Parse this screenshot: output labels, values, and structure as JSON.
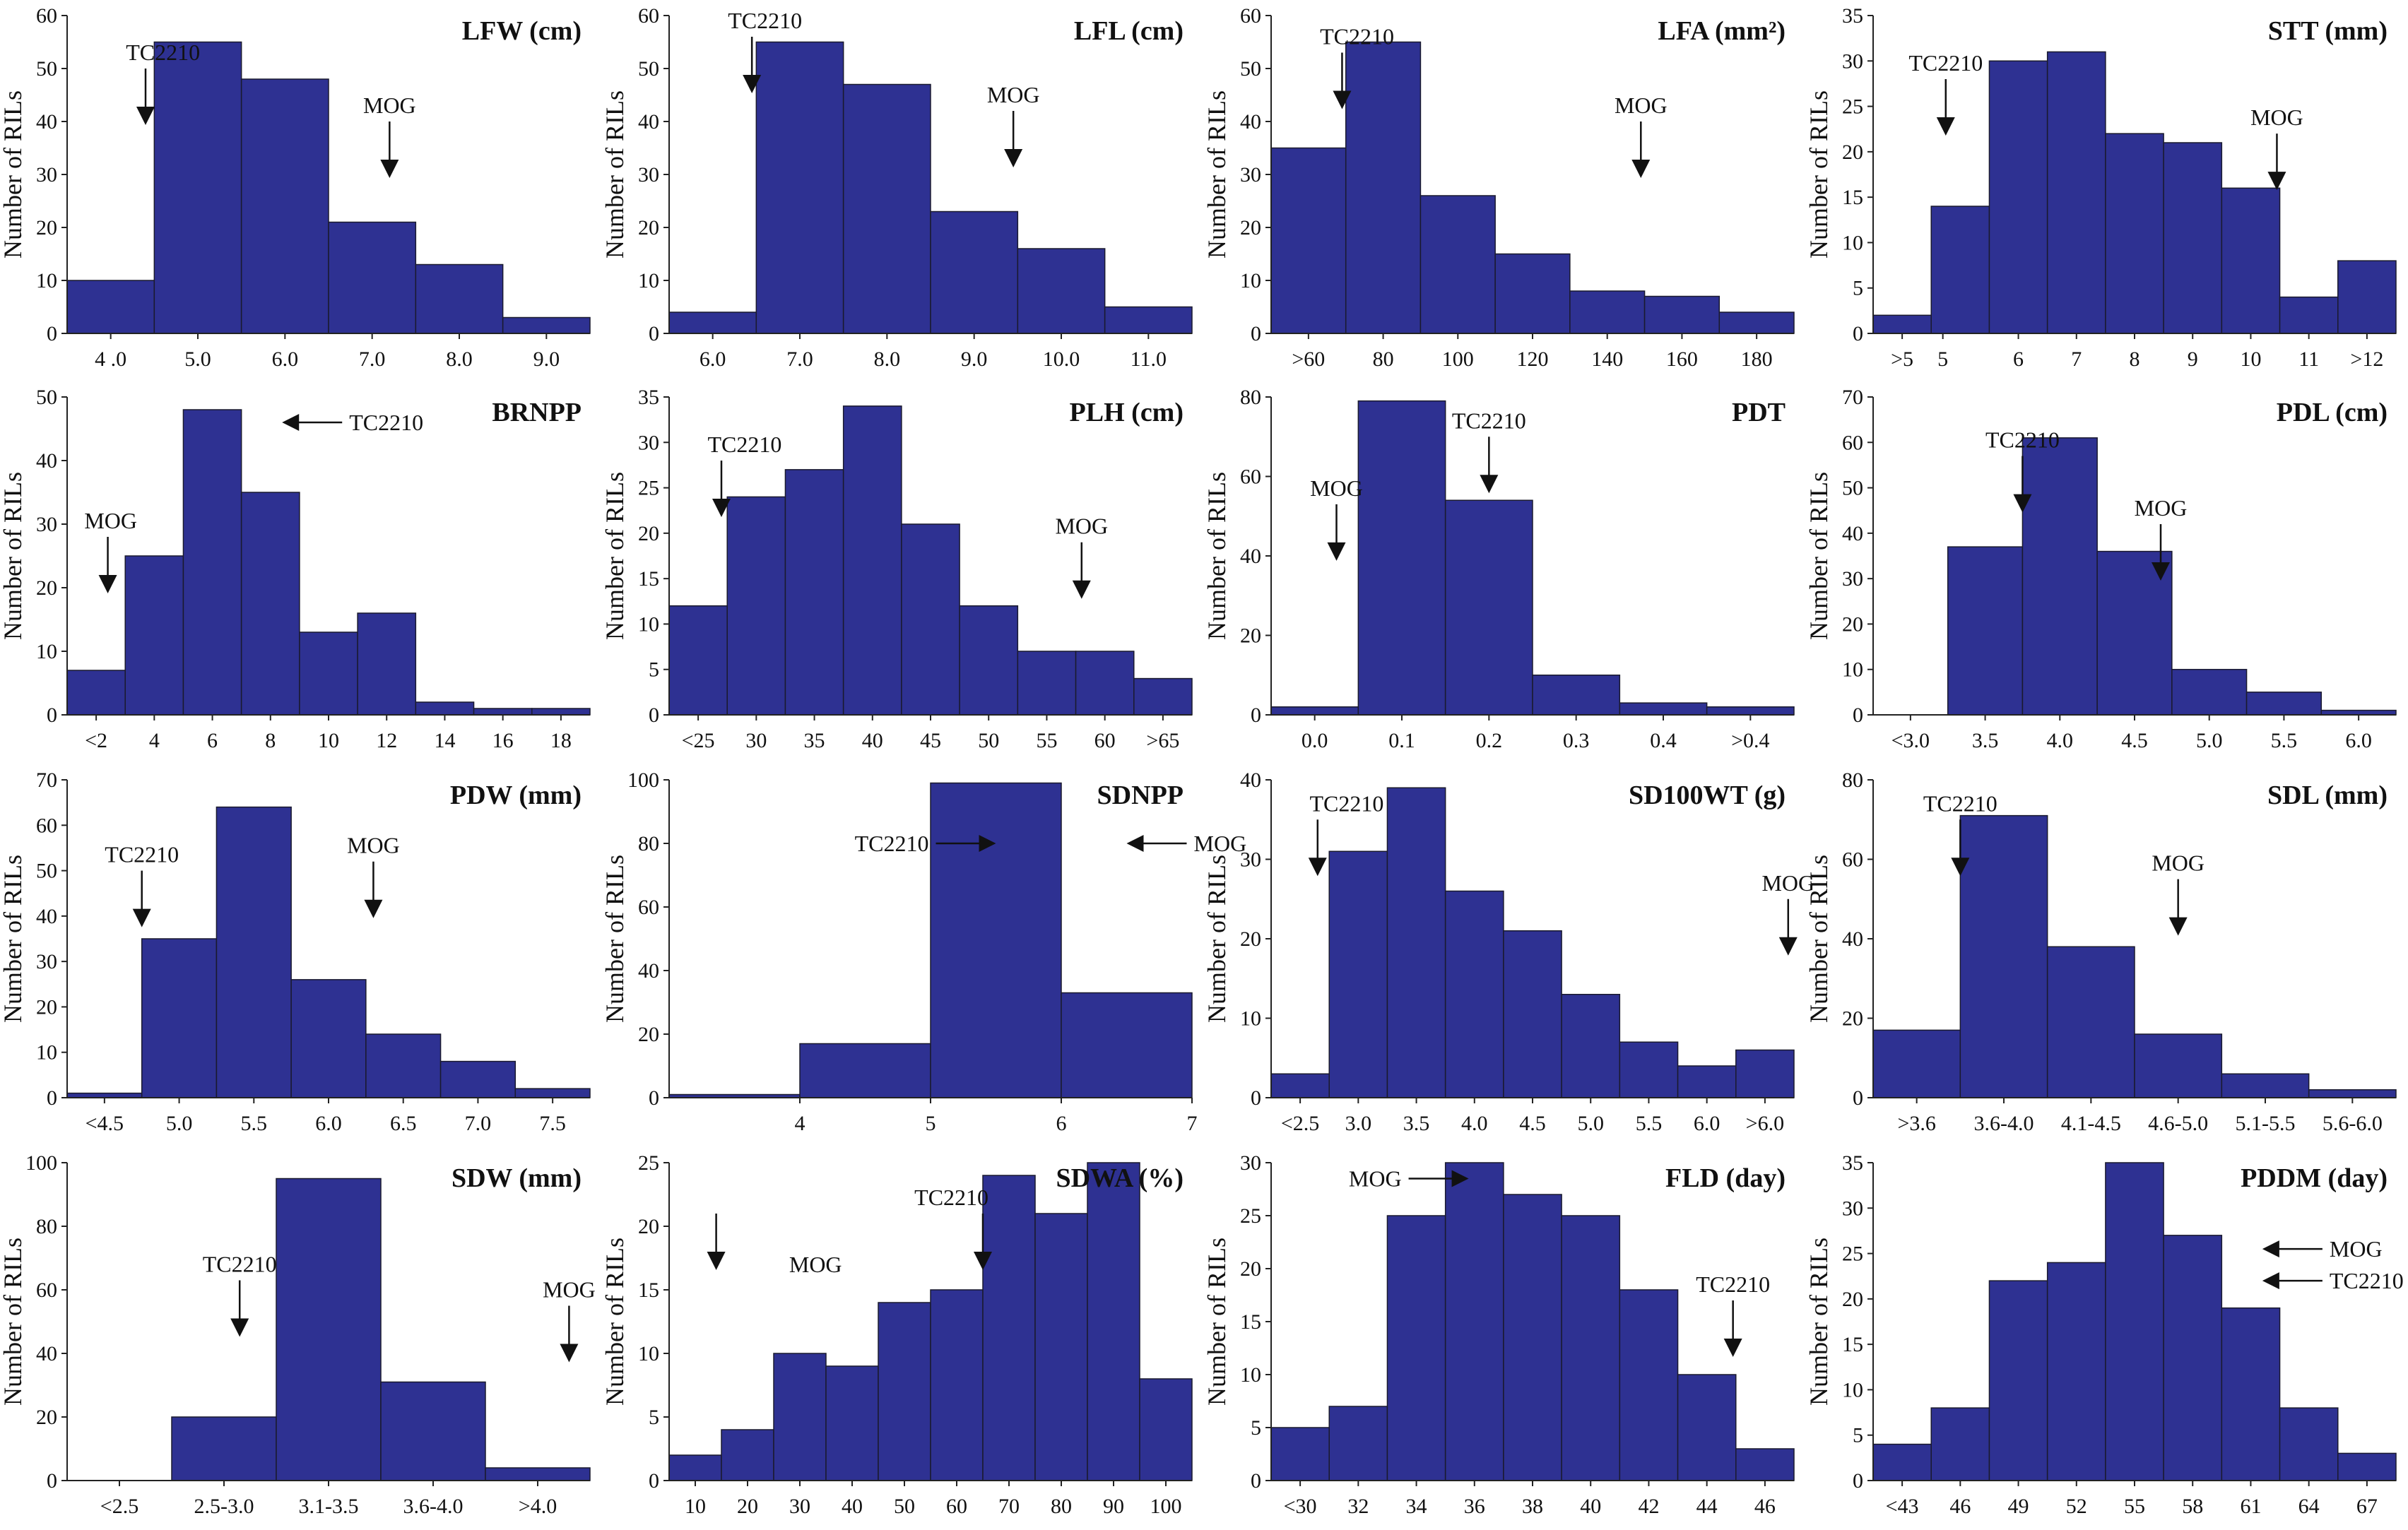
{
  "figure": {
    "ylabel": "Number of RILs"
  },
  "chart_data": [
    {
      "type": "bar",
      "title": "LFW (cm)",
      "ylim": [
        0,
        60
      ],
      "yticks": [
        0,
        10,
        20,
        30,
        40,
        50,
        60
      ],
      "values": [
        10,
        55,
        48,
        21,
        13,
        3
      ],
      "xticks": [
        {
          "label": "4 .0",
          "p": 0.0
        },
        {
          "label": "5.0",
          "p": 1.0
        },
        {
          "label": "6.0",
          "p": 2.0
        },
        {
          "label": "7.0",
          "p": 3.0
        },
        {
          "label": "8.0",
          "p": 4.0
        },
        {
          "label": "9.0",
          "p": 5.0
        }
      ],
      "annotations": [
        {
          "text": "TC2210",
          "type": "down",
          "p": 0.4,
          "y": 50,
          "tdx": 0.2
        },
        {
          "text": "MOG",
          "type": "down",
          "p": 3.2,
          "y": 40
        }
      ]
    },
    {
      "type": "bar",
      "title": "LFL (cm)",
      "ylim": [
        0,
        60
      ],
      "yticks": [
        0,
        10,
        20,
        30,
        40,
        50,
        60
      ],
      "values": [
        4,
        55,
        47,
        23,
        16,
        5
      ],
      "xticks": [
        {
          "label": "6.0",
          "p": 0.0
        },
        {
          "label": "7.0",
          "p": 1.0
        },
        {
          "label": "8.0",
          "p": 2.0
        },
        {
          "label": "9.0",
          "p": 3.0
        },
        {
          "label": "10.0",
          "p": 4.0
        },
        {
          "label": "11.0",
          "p": 5.0
        }
      ],
      "annotations": [
        {
          "text": "TC2210",
          "type": "down",
          "p": 0.45,
          "y": 56,
          "tdx": 0.15
        },
        {
          "text": "MOG",
          "type": "down",
          "p": 3.45,
          "y": 42
        }
      ]
    },
    {
      "type": "bar",
      "title": "LFA (mm²)",
      "ylim": [
        0,
        60
      ],
      "yticks": [
        0,
        10,
        20,
        30,
        40,
        50,
        60
      ],
      "values": [
        35,
        55,
        26,
        15,
        8,
        7,
        4
      ],
      "xticks": [
        {
          "label": ">60",
          "p": 0.0
        },
        {
          "label": "80",
          "p": 1.0
        },
        {
          "label": "100",
          "p": 2.0
        },
        {
          "label": "120",
          "p": 3.0
        },
        {
          "label": "140",
          "p": 4.0
        },
        {
          "label": "160",
          "p": 5.0
        },
        {
          "label": "180",
          "p": 6.0
        }
      ],
      "annotations": [
        {
          "text": "TC2210",
          "type": "down",
          "p": 0.45,
          "y": 53,
          "tdx": 0.2
        },
        {
          "text": "MOG",
          "type": "down",
          "p": 4.45,
          "y": 40
        }
      ]
    },
    {
      "type": "bar",
      "title": "STT (mm)",
      "ylim": [
        0,
        35
      ],
      "yticks": [
        0,
        5,
        10,
        15,
        20,
        25,
        30,
        35
      ],
      "values": [
        2,
        14,
        30,
        31,
        22,
        21,
        16,
        4,
        8
      ],
      "xticks": [
        {
          "label": ">5",
          "p": 0.0
        },
        {
          "label": "5",
          "p": 0.7
        },
        {
          "label": "6",
          "p": 2.0
        },
        {
          "label": "7",
          "p": 3.0
        },
        {
          "label": "8",
          "p": 4.0
        },
        {
          "label": "9",
          "p": 5.0
        },
        {
          "label": "10",
          "p": 6.0
        },
        {
          "label": "11",
          "p": 7.0
        },
        {
          "label": ">12",
          "p": 8.0
        }
      ],
      "annotations": [
        {
          "text": "TC2210",
          "type": "down",
          "p": 0.75,
          "y": 28,
          "tdx": 0.0
        },
        {
          "text": "MOG",
          "type": "down",
          "p": 6.45,
          "y": 22
        }
      ]
    },
    {
      "type": "bar",
      "title": "BRNPP",
      "ylim": [
        0,
        50
      ],
      "yticks": [
        0,
        10,
        20,
        30,
        40,
        50
      ],
      "values": [
        7,
        25,
        48,
        35,
        13,
        16,
        2,
        1,
        1
      ],
      "xticks": [
        {
          "label": "<2",
          "p": 0.0
        },
        {
          "label": "4",
          "p": 1.0
        },
        {
          "label": "6",
          "p": 2.0
        },
        {
          "label": "8",
          "p": 3.0
        },
        {
          "label": "10",
          "p": 4.0
        },
        {
          "label": "12",
          "p": 5.0
        },
        {
          "label": "14",
          "p": 6.0
        },
        {
          "label": "16",
          "p": 7.0
        },
        {
          "label": "18",
          "p": 8.0
        }
      ],
      "annotations": [
        {
          "text": "TC2210",
          "type": "left",
          "p": 3.2,
          "y": 46
        },
        {
          "text": "MOG",
          "type": "down",
          "p": 0.2,
          "y": 28,
          "tdx": 0.05
        }
      ]
    },
    {
      "type": "bar",
      "title": "PLH (cm)",
      "ylim": [
        0,
        35
      ],
      "yticks": [
        0,
        5,
        10,
        15,
        20,
        25,
        30,
        35
      ],
      "values": [
        12,
        24,
        27,
        34,
        21,
        12,
        7,
        7,
        4
      ],
      "xticks": [
        {
          "label": "<25",
          "p": 0.0
        },
        {
          "label": "30",
          "p": 1.0
        },
        {
          "label": "35",
          "p": 2.0
        },
        {
          "label": "40",
          "p": 3.0
        },
        {
          "label": "45",
          "p": 4.0
        },
        {
          "label": "50",
          "p": 5.0
        },
        {
          "label": "55",
          "p": 6.0
        },
        {
          "label": "60",
          "p": 7.0
        },
        {
          "label": ">65",
          "p": 8.0
        }
      ],
      "annotations": [
        {
          "text": "TC2210",
          "type": "down",
          "p": 0.4,
          "y": 28,
          "tdx": 0.4
        },
        {
          "text": "MOG",
          "type": "down",
          "p": 6.6,
          "y": 19
        }
      ]
    },
    {
      "type": "bar",
      "title": "PDT",
      "ylim": [
        0,
        80
      ],
      "yticks": [
        0,
        20,
        40,
        60,
        80
      ],
      "values": [
        2,
        79,
        54,
        10,
        3,
        2
      ],
      "xticks": [
        {
          "label": "0.0",
          "p": 0.0
        },
        {
          "label": "0.1",
          "p": 1.0
        },
        {
          "label": "0.2",
          "p": 2.0
        },
        {
          "label": "0.3",
          "p": 3.0
        },
        {
          "label": "0.4",
          "p": 4.0
        },
        {
          "label": ">0.4",
          "p": 5.0
        }
      ],
      "annotations": [
        {
          "text": "TC2210",
          "type": "down",
          "p": 2.0,
          "y": 70,
          "tdx": 0.0
        },
        {
          "text": "MOG",
          "type": "down",
          "p": 0.25,
          "y": 53,
          "tdx": 0.0
        }
      ]
    },
    {
      "type": "bar",
      "title": "PDL (cm)",
      "ylim": [
        0,
        70
      ],
      "yticks": [
        0,
        10,
        20,
        30,
        40,
        50,
        60,
        70
      ],
      "values": [
        0,
        37,
        61,
        36,
        10,
        5,
        1
      ],
      "xticks": [
        {
          "label": "<3.0",
          "p": 0.0
        },
        {
          "label": "3.5",
          "p": 1.0
        },
        {
          "label": "4.0",
          "p": 2.0
        },
        {
          "label": "4.5",
          "p": 3.0
        },
        {
          "label": "5.0",
          "p": 4.0
        },
        {
          "label": "5.5",
          "p": 5.0
        },
        {
          "label": "6.0",
          "p": 6.0
        }
      ],
      "annotations": [
        {
          "text": "TC2210",
          "type": "down",
          "p": 1.5,
          "y": 57,
          "tdx": 0.0
        },
        {
          "text": "MOG",
          "type": "down",
          "p": 3.35,
          "y": 42,
          "tdx": 0.0
        }
      ]
    },
    {
      "type": "bar",
      "title": "PDW (mm)",
      "ylim": [
        0,
        70
      ],
      "yticks": [
        0,
        10,
        20,
        30,
        40,
        50,
        60,
        70
      ],
      "values": [
        1,
        35,
        64,
        26,
        14,
        8,
        2
      ],
      "xticks": [
        {
          "label": "<4.5",
          "p": 0.0
        },
        {
          "label": "5.0",
          "p": 1.0
        },
        {
          "label": "5.5",
          "p": 2.0
        },
        {
          "label": "6.0",
          "p": 3.0
        },
        {
          "label": "6.5",
          "p": 4.0
        },
        {
          "label": "7.0",
          "p": 5.0
        },
        {
          "label": "7.5",
          "p": 6.0
        }
      ],
      "annotations": [
        {
          "text": "TC2210",
          "type": "down",
          "p": 0.5,
          "y": 50,
          "tdx": 0.0
        },
        {
          "text": "MOG",
          "type": "down",
          "p": 3.6,
          "y": 52,
          "tdx": 0.0
        }
      ]
    },
    {
      "type": "bar",
      "title": "SDNPP",
      "ylim": [
        0,
        100
      ],
      "yticks": [
        0,
        20,
        40,
        60,
        80,
        100
      ],
      "values": [
        1,
        17,
        99,
        33
      ],
      "xticks": [
        {
          "label": "4",
          "p": 0.5
        },
        {
          "label": "5",
          "p": 1.5
        },
        {
          "label": "6",
          "p": 2.5
        },
        {
          "label": "7",
          "p": 3.5
        }
      ],
      "annotations": [
        {
          "text": "TC2210",
          "type": "right",
          "p": 2.0,
          "y": 80
        },
        {
          "text": "MOG",
          "type": "left",
          "p": 3.0,
          "y": 80
        }
      ]
    },
    {
      "type": "bar",
      "title": "SD100WT (g)",
      "ylim": [
        0,
        40
      ],
      "yticks": [
        0,
        10,
        20,
        30,
        40
      ],
      "values": [
        3,
        31,
        39,
        26,
        21,
        13,
        7,
        4,
        6
      ],
      "xticks": [
        {
          "label": "<2.5",
          "p": 0.0
        },
        {
          "label": "3.0",
          "p": 1.0
        },
        {
          "label": "3.5",
          "p": 2.0
        },
        {
          "label": "4.0",
          "p": 3.0
        },
        {
          "label": "4.5",
          "p": 4.0
        },
        {
          "label": "5.0",
          "p": 5.0
        },
        {
          "label": "5.5",
          "p": 6.0
        },
        {
          "label": "6.0",
          "p": 7.0
        },
        {
          "label": ">6.0",
          "p": 8.0
        }
      ],
      "annotations": [
        {
          "text": "TC2210",
          "type": "down",
          "p": 0.3,
          "y": 35,
          "tdx": 0.5
        },
        {
          "text": "MOG",
          "type": "down",
          "p": 8.4,
          "y": 25,
          "tdx": 0.0
        }
      ]
    },
    {
      "type": "bar",
      "title": "SDL (mm)",
      "ylim": [
        0,
        80
      ],
      "yticks": [
        0,
        20,
        40,
        60,
        80
      ],
      "values": [
        17,
        71,
        38,
        16,
        6,
        2
      ],
      "xticks": [
        {
          "label": ">3.6",
          "p": 0.0
        },
        {
          "label": "3.6-4.0",
          "p": 1.0
        },
        {
          "label": "4.1-4.5",
          "p": 2.0
        },
        {
          "label": "4.6-5.0",
          "p": 3.0
        },
        {
          "label": "5.1-5.5",
          "p": 4.0
        },
        {
          "label": "5.6-6.0",
          "p": 5.0
        }
      ],
      "annotations": [
        {
          "text": "TC2210",
          "type": "down",
          "p": 0.5,
          "y": 70,
          "tdx": 0.0
        },
        {
          "text": "MOG",
          "type": "down",
          "p": 3.0,
          "y": 55,
          "tdx": 0.0
        }
      ]
    },
    {
      "type": "bar",
      "title": "SDW (mm)",
      "ylim": [
        0,
        100
      ],
      "yticks": [
        0,
        20,
        40,
        60,
        80,
        100
      ],
      "values": [
        0,
        20,
        95,
        31,
        4
      ],
      "xticks": [
        {
          "label": "<2.5",
          "p": 0.0
        },
        {
          "label": "2.5-3.0",
          "p": 1.0
        },
        {
          "label": "3.1-3.5",
          "p": 2.0
        },
        {
          "label": "3.6-4.0",
          "p": 3.0
        },
        {
          "label": ">4.0",
          "p": 4.0
        }
      ],
      "annotations": [
        {
          "text": "TC2210",
          "type": "down",
          "p": 1.15,
          "y": 63,
          "tdx": 0.0
        },
        {
          "text": "MOG",
          "type": "down",
          "p": 4.3,
          "y": 55,
          "tdx": 0.0
        }
      ]
    },
    {
      "type": "bar",
      "title": "SDWA (%)",
      "ylim": [
        0,
        25
      ],
      "yticks": [
        0,
        5,
        10,
        15,
        20,
        25
      ],
      "values": [
        2,
        4,
        10,
        9,
        14,
        15,
        24,
        21,
        25,
        8
      ],
      "xticks": [
        {
          "label": "10",
          "p": 0.0
        },
        {
          "label": "20",
          "p": 1.0
        },
        {
          "label": "30",
          "p": 2.0
        },
        {
          "label": "40",
          "p": 3.0
        },
        {
          "label": "50",
          "p": 4.0
        },
        {
          "label": "60",
          "p": 5.0
        },
        {
          "label": "70",
          "p": 6.0
        },
        {
          "label": "80",
          "p": 7.0
        },
        {
          "label": "90",
          "p": 8.0
        },
        {
          "label": "100",
          "p": 9.0
        }
      ],
      "annotations": [
        {
          "text": "",
          "type": "down",
          "p": 0.4,
          "y": 21,
          "tdx": 0.0
        },
        {
          "text": "MOG",
          "type": "text",
          "p": 2.3,
          "y": 17
        },
        {
          "text": "TC2210",
          "type": "down",
          "p": 5.5,
          "y": 21,
          "tdx": -0.6
        }
      ]
    },
    {
      "type": "bar",
      "title": "FLD (day)",
      "ylim": [
        0,
        30
      ],
      "yticks": [
        0,
        5,
        10,
        15,
        20,
        25,
        30
      ],
      "values": [
        5,
        7,
        25,
        30,
        27,
        25,
        18,
        10,
        3
      ],
      "xticks": [
        {
          "label": "<30",
          "p": 0.0
        },
        {
          "label": "32",
          "p": 1.0
        },
        {
          "label": "34",
          "p": 2.0
        },
        {
          "label": "36",
          "p": 3.0
        },
        {
          "label": "38",
          "p": 4.0
        },
        {
          "label": "40",
          "p": 5.0
        },
        {
          "label": "42",
          "p": 6.0
        },
        {
          "label": "44",
          "p": 7.0
        },
        {
          "label": "46",
          "p": 8.0
        }
      ],
      "annotations": [
        {
          "text": "MOG",
          "type": "right",
          "p": 2.9,
          "y": 28.5
        },
        {
          "text": "TC2210",
          "type": "down",
          "p": 7.45,
          "y": 17,
          "tdx": 0.0
        }
      ]
    },
    {
      "type": "bar",
      "title": "PDDM (day)",
      "ylim": [
        0,
        35
      ],
      "yticks": [
        0,
        5,
        10,
        15,
        20,
        25,
        30,
        35
      ],
      "values": [
        4,
        8,
        22,
        24,
        35,
        27,
        19,
        8,
        3
      ],
      "xticks": [
        {
          "label": "<43",
          "p": 0.0
        },
        {
          "label": "46",
          "p": 1.0
        },
        {
          "label": "49",
          "p": 2.0
        },
        {
          "label": "52",
          "p": 3.0
        },
        {
          "label": "55",
          "p": 4.0
        },
        {
          "label": "58",
          "p": 5.0
        },
        {
          "label": "61",
          "p": 6.0
        },
        {
          "label": "64",
          "p": 7.0
        },
        {
          "label": "67",
          "p": 8.0
        }
      ],
      "annotations": [
        {
          "text": "MOG",
          "type": "left",
          "p": 6.2,
          "y": 25.5
        },
        {
          "text": "TC2210",
          "type": "left",
          "p": 6.2,
          "y": 22
        }
      ]
    }
  ]
}
